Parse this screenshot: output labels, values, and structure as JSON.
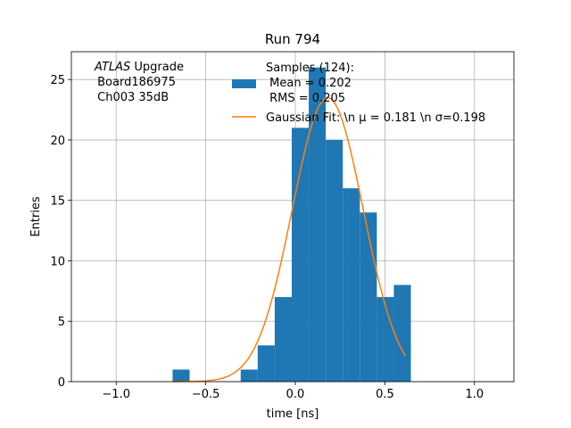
{
  "chart_data": {
    "type": "bar",
    "title": "Run 794",
    "xlabel": "time [ns]",
    "ylabel": "Entries",
    "xlim": [
      -1.25,
      1.22
    ],
    "ylim": [
      0,
      27.3
    ],
    "xticks": [
      -1.0,
      -0.5,
      0.0,
      0.5,
      1.0
    ],
    "xtick_labels": [
      "−1.0",
      "−0.5",
      "0.0",
      "0.5",
      "1.0"
    ],
    "yticks": [
      0,
      5,
      10,
      15,
      20,
      25
    ],
    "ytick_labels": [
      "0",
      "5",
      "10",
      "15",
      "20",
      "25"
    ],
    "grid": true,
    "legend_placement": "upper-right",
    "annotation": {
      "line1_italic": "ATLAS",
      "line1_rest": " Upgrade",
      "line2": " Board186975",
      "line3": " Ch003 35dB"
    },
    "histogram": {
      "name_lines": [
        "Samples (124):",
        " Mean = 0.202",
        " RMS = 0.205"
      ],
      "color": "#1f77b4",
      "bin_edges": [
        -0.685,
        -0.59,
        -0.305,
        -0.21,
        -0.115,
        -0.02,
        0.075,
        0.17,
        0.265,
        0.36,
        0.455,
        0.55,
        0.645
      ],
      "counts": [
        1,
        0,
        1,
        3,
        7,
        21,
        26,
        20,
        16,
        14,
        7,
        8
      ]
    },
    "fit": {
      "name": "Gaussian Fit: \\n μ = 0.181 \\n σ=0.198",
      "color": "#ff7f0e",
      "amplitude": 23.5,
      "mu": 0.181,
      "sigma": 0.198,
      "x_range": [
        -0.685,
        0.615
      ]
    }
  }
}
